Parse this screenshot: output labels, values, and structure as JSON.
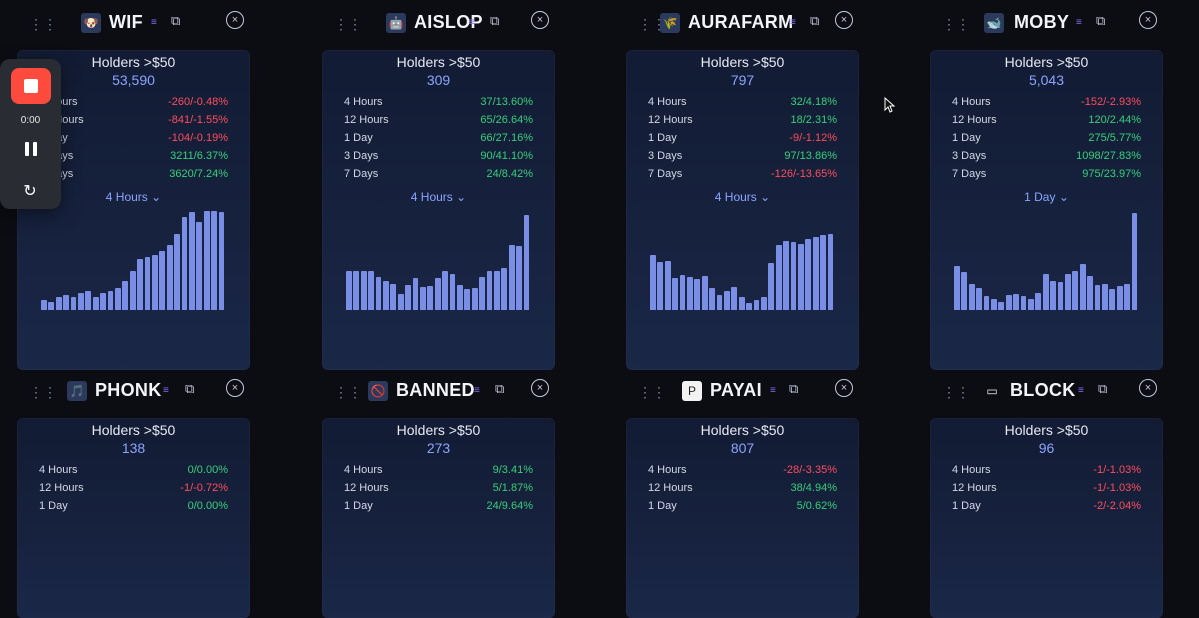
{
  "recording": {
    "time": "0:00"
  },
  "cards": [
    {
      "symbol": "WIF",
      "holders_title": "Holders >$50",
      "holders_value": "53,590",
      "metrics": [
        {
          "label": "4 Hours",
          "value": "-260/-0.48%",
          "neg": true
        },
        {
          "label": "12 Hours",
          "value": "-841/-1.55%",
          "neg": true
        },
        {
          "label": "1 Day",
          "value": "-104/-0.19%",
          "neg": true
        },
        {
          "label": "3 Days",
          "value": "3211/6.37%",
          "neg": false
        },
        {
          "label": "7 Days",
          "value": "3620/7.24%",
          "neg": false
        }
      ],
      "interval": "4 Hours",
      "bars": [
        0.1,
        0.08,
        0.13,
        0.15,
        0.13,
        0.17,
        0.19,
        0.13,
        0.17,
        0.19,
        0.22,
        0.29,
        0.39,
        0.51,
        0.53,
        0.55,
        0.59,
        0.65,
        0.76,
        0.93,
        0.98,
        0.88,
        0.99,
        0.99,
        0.98
      ]
    },
    {
      "symbol": "AISLOP",
      "holders_title": "Holders >$50",
      "holders_value": "309",
      "metrics": [
        {
          "label": "4 Hours",
          "value": "37/13.60%",
          "neg": false
        },
        {
          "label": "12 Hours",
          "value": "65/26.64%",
          "neg": false
        },
        {
          "label": "1 Day",
          "value": "66/27.16%",
          "neg": false
        },
        {
          "label": "3 Days",
          "value": "90/41.10%",
          "neg": false
        },
        {
          "label": "7 Days",
          "value": "24/8.42%",
          "neg": false
        }
      ],
      "interval": "4 Hours",
      "bars": [
        0.39,
        0.39,
        0.39,
        0.39,
        0.33,
        0.29,
        0.26,
        0.16,
        0.25,
        0.32,
        0.23,
        0.24,
        0.32,
        0.39,
        0.36,
        0.25,
        0.21,
        0.22,
        0.33,
        0.39,
        0.39,
        0.42,
        0.65,
        0.64,
        0.95
      ]
    },
    {
      "symbol": "AURAFARM",
      "holders_title": "Holders >$50",
      "holders_value": "797",
      "metrics": [
        {
          "label": "4 Hours",
          "value": "32/4.18%",
          "neg": false
        },
        {
          "label": "12 Hours",
          "value": "18/2.31%",
          "neg": false
        },
        {
          "label": "1 Day",
          "value": "-9/-1.12%",
          "neg": true
        },
        {
          "label": "3 Days",
          "value": "97/13.86%",
          "neg": false
        },
        {
          "label": "7 Days",
          "value": "-126/-13.65%",
          "neg": true
        }
      ],
      "interval": "4 Hours",
      "bars": [
        0.55,
        0.48,
        0.49,
        0.32,
        0.35,
        0.33,
        0.31,
        0.34,
        0.22,
        0.15,
        0.19,
        0.23,
        0.13,
        0.07,
        0.1,
        0.13,
        0.47,
        0.65,
        0.69,
        0.68,
        0.66,
        0.71,
        0.73,
        0.75,
        0.76
      ]
    },
    {
      "symbol": "MOBY",
      "holders_title": "Holders >$50",
      "holders_value": "5,043",
      "metrics": [
        {
          "label": "4 Hours",
          "value": "-152/-2.93%",
          "neg": true
        },
        {
          "label": "12 Hours",
          "value": "120/2.44%",
          "neg": false
        },
        {
          "label": "1 Day",
          "value": "275/5.77%",
          "neg": false
        },
        {
          "label": "3 Days",
          "value": "1098/27.83%",
          "neg": false
        },
        {
          "label": "7 Days",
          "value": "975/23.97%",
          "neg": false
        }
      ],
      "interval": "1 Day",
      "bars": [
        0.44,
        0.38,
        0.26,
        0.22,
        0.14,
        0.11,
        0.08,
        0.15,
        0.16,
        0.14,
        0.11,
        0.17,
        0.36,
        0.29,
        0.28,
        0.36,
        0.39,
        0.46,
        0.34,
        0.25,
        0.26,
        0.21,
        0.24,
        0.26,
        0.97
      ]
    },
    {
      "symbol": "PHONK",
      "holders_title": "Holders >$50",
      "holders_value": "138",
      "metrics": [
        {
          "label": "4 Hours",
          "value": "0/0.00%",
          "neg": false
        },
        {
          "label": "12 Hours",
          "value": "-1/-0.72%",
          "neg": true
        },
        {
          "label": "1 Day",
          "value": "0/0.00%",
          "neg": false
        }
      ],
      "interval": "",
      "bars": []
    },
    {
      "symbol": "BANNED",
      "holders_title": "Holders >$50",
      "holders_value": "273",
      "metrics": [
        {
          "label": "4 Hours",
          "value": "9/3.41%",
          "neg": false
        },
        {
          "label": "12 Hours",
          "value": "5/1.87%",
          "neg": false
        },
        {
          "label": "1 Day",
          "value": "24/9.64%",
          "neg": false
        }
      ],
      "interval": "",
      "bars": []
    },
    {
      "symbol": "PAYAI",
      "holders_title": "Holders >$50",
      "holders_value": "807",
      "metrics": [
        {
          "label": "4 Hours",
          "value": "-28/-3.35%",
          "neg": true
        },
        {
          "label": "12 Hours",
          "value": "38/4.94%",
          "neg": false
        },
        {
          "label": "1 Day",
          "value": "5/0.62%",
          "neg": false
        }
      ],
      "interval": "",
      "bars": []
    },
    {
      "symbol": "BLOCK",
      "holders_title": "Holders >$50",
      "holders_value": "96",
      "metrics": [
        {
          "label": "4 Hours",
          "value": "-1/-1.03%",
          "neg": true
        },
        {
          "label": "12 Hours",
          "value": "-1/-1.03%",
          "neg": true
        },
        {
          "label": "1 Day",
          "value": "-2/-2.04%",
          "neg": true
        }
      ],
      "interval": "",
      "bars": []
    }
  ],
  "colors": {
    "positive": "#36d07b",
    "negative": "#ff4d5c",
    "accent": "#8ba4ff",
    "bar": "#7b8ee6"
  }
}
